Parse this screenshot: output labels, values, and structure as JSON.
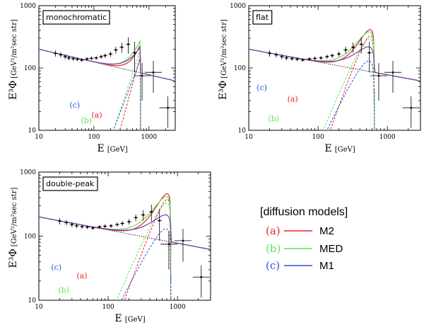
{
  "chart_data": {
    "type": "line",
    "shared": {
      "xscale": "log",
      "yscale": "log",
      "xlim": [
        10,
        3000
      ],
      "ylim": [
        10,
        1000
      ],
      "xticks": [
        10,
        100,
        1000
      ],
      "xtick_labels": [
        "10",
        "100",
        "1000"
      ],
      "yticks": [
        10,
        100,
        1000
      ],
      "ytick_labels": [
        "10",
        "100",
        "1000"
      ],
      "xlabel": "E",
      "xlabel_unit": "[GeV]",
      "ylabel": "E³Φ",
      "ylabel_unit": "[GeV²/m²sec str]",
      "colors": {
        "M2": "#e8232b",
        "MED": "#5ee25b",
        "M1": "#2a50d8",
        "sum_m1": "#7a3fb0",
        "background": "#000000"
      }
    },
    "panels": [
      {
        "label": "monochromatic",
        "model": "monochromatic",
        "cutoff_GeV": 700,
        "curve_labels": {
          "a": "(a)",
          "b": "(b)",
          "c": "(c)"
        },
        "curve_label_pos": {
          "a": [
            90,
            16
          ],
          "b": [
            58,
            13
          ],
          "c": [
            36,
            23
          ]
        },
        "peak_values": {
          "M2": 240,
          "MED": 280,
          "M1": 220
        }
      },
      {
        "label": "flat",
        "model": "flat",
        "cutoff_GeV": 650,
        "curve_labels": {
          "a": "(a)",
          "b": "(b)",
          "c": "(c)"
        },
        "curve_label_pos": {
          "a": [
            36,
            29
          ],
          "b": [
            19,
            14
          ],
          "c": [
            13,
            44
          ]
        },
        "peak_values": {
          "M2": 230,
          "MED": 250,
          "M1": 175
        }
      },
      {
        "label": "double-peak",
        "model": "double-peak",
        "cutoff_GeV": 800,
        "curve_labels": {
          "a": "(a)",
          "b": "(b)",
          "c": "(c)"
        },
        "curve_label_pos": {
          "a": [
            35,
            22
          ],
          "b": [
            19,
            13
          ],
          "c": [
            15,
            30
          ]
        },
        "peak_values": {
          "M2": 240,
          "MED": 260,
          "M1": 170
        }
      }
    ],
    "data_points": [
      {
        "E": 20,
        "y": 172,
        "err": 20
      },
      {
        "E": 25,
        "y": 163,
        "err": 16
      },
      {
        "E": 30,
        "y": 152,
        "err": 14
      },
      {
        "E": 35,
        "y": 145,
        "err": 12
      },
      {
        "E": 42,
        "y": 141,
        "err": 10
      },
      {
        "E": 50,
        "y": 138,
        "err": 9
      },
      {
        "E": 60,
        "y": 134,
        "err": 8
      },
      {
        "E": 75,
        "y": 140,
        "err": 8
      },
      {
        "E": 90,
        "y": 143,
        "err": 9
      },
      {
        "E": 110,
        "y": 145,
        "err": 10
      },
      {
        "E": 135,
        "y": 152,
        "err": 11
      },
      {
        "E": 160,
        "y": 158,
        "err": 13
      },
      {
        "E": 200,
        "y": 168,
        "err": 16
      },
      {
        "E": 250,
        "y": 195,
        "err": 24
      },
      {
        "E": 320,
        "y": 215,
        "err": 40
      },
      {
        "E": 420,
        "y": 240,
        "err": 70
      },
      {
        "E": 550,
        "y": 175,
        "err": 90
      },
      {
        "E": 750,
        "y": 75,
        "err": 45
      },
      {
        "E": 1200,
        "y": 85,
        "err": 45
      },
      {
        "E": 2200,
        "y": 23,
        "err": 12
      }
    ],
    "background_line": {
      "E": [
        10,
        3000
      ],
      "y": [
        200,
        62
      ]
    },
    "legend": {
      "title": "[diffusion models]",
      "entries": [
        {
          "letter": "(a)",
          "name": "M2",
          "color": "#e8232b"
        },
        {
          "letter": "(b)",
          "name": "MED",
          "color": "#5ee25b"
        },
        {
          "letter": "(c)",
          "name": "M1",
          "color": "#2a50d8"
        }
      ]
    }
  }
}
